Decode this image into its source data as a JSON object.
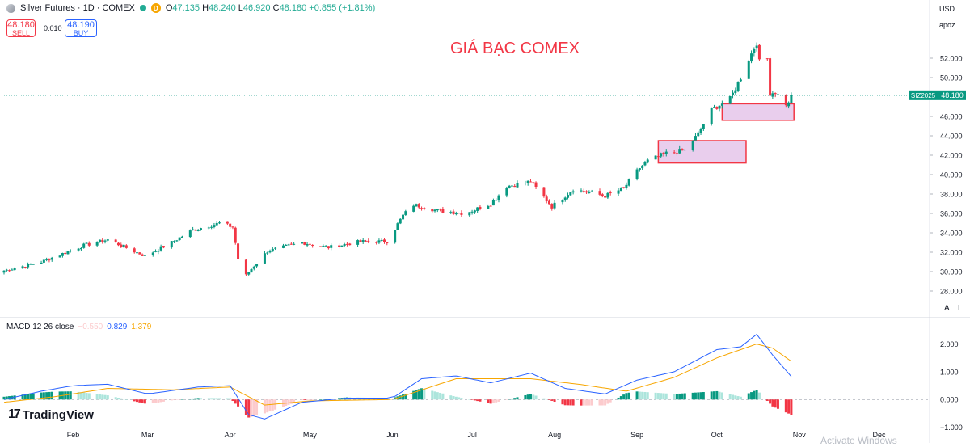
{
  "header": {
    "title": "Silver Futures · 1D · COMEX",
    "badge": "D",
    "open_label": "O",
    "open": "47.135",
    "high_label": "H",
    "high": "48.240",
    "low_label": "L",
    "low": "46.920",
    "close_label": "C",
    "close": "48.180",
    "change": "+0.855 (+1.81%)"
  },
  "trade": {
    "sell_price": "48.180",
    "sell_label": "SELL",
    "spread": "0.010",
    "buy_price": "48.190",
    "buy_label": "BUY"
  },
  "right_panel": {
    "currency": "USD",
    "scale_label": "apoz"
  },
  "watermark": "TradingView",
  "macd_label": {
    "name": "MACD 12 26 close",
    "hist": "−0.550",
    "macd": "0.829",
    "signal": "1.379"
  },
  "scale_buttons": [
    "A",
    "L"
  ],
  "os_overlay": "Activate Windows",
  "colors": {
    "up": "#089981",
    "down": "#f23645",
    "macd": "#2962ff",
    "signal": "#f7a600",
    "hist_up_strong": "#089981",
    "hist_up_weak": "#ace5dc",
    "hist_down_strong": "#f23645",
    "hist_down_weak": "#fccbcd",
    "zone_fill": "#e1bee7",
    "zone_border": "#f23645",
    "title_color": "#f23645",
    "last_price_tag": "#089981"
  },
  "chart_data": [
    {
      "type": "candlestick",
      "title": "GIÁ BẠC COMEX",
      "symbol_tag": "SIZ2025",
      "last_price": 48.18,
      "y_ticks": [
        "52.000",
        "50.000",
        "48.000",
        "46.000",
        "44.000",
        "42.000",
        "40.000",
        "38.000",
        "36.000",
        "34.000",
        "32.000",
        "30.000",
        "28.000"
      ],
      "ylim": [
        27,
        55.5
      ],
      "x_ticks": [
        {
          "label": "Feb",
          "date": "2025-02-01"
        },
        {
          "label": "Mar",
          "date": "2025-03-01"
        },
        {
          "label": "Apr",
          "date": "2025-04-01"
        },
        {
          "label": "May",
          "date": "2025-05-01"
        },
        {
          "label": "Jun",
          "date": "2025-06-01"
        },
        {
          "label": "Jul",
          "date": "2025-07-01"
        },
        {
          "label": "Aug",
          "date": "2025-08-01"
        },
        {
          "label": "Sep",
          "date": "2025-09-01"
        },
        {
          "label": "Oct",
          "date": "2025-10-01"
        },
        {
          "label": "Nov",
          "date": "2025-11-01"
        },
        {
          "label": "Dec",
          "date": "2025-12-01"
        }
      ],
      "x_range": [
        "2025-01-06",
        "2025-12-20"
      ],
      "key_points": [
        {
          "date": "2025-01-06",
          "close": 30.1
        },
        {
          "date": "2025-01-20",
          "close": 31.0
        },
        {
          "date": "2025-02-05",
          "close": 32.7
        },
        {
          "date": "2025-02-14",
          "close": 33.3
        },
        {
          "date": "2025-02-28",
          "close": 31.6
        },
        {
          "date": "2025-03-10",
          "close": 33.0
        },
        {
          "date": "2025-03-18",
          "close": 34.3
        },
        {
          "date": "2025-03-28",
          "close": 35.0
        },
        {
          "date": "2025-04-02",
          "close": 34.6
        },
        {
          "date": "2025-04-04",
          "close": 31.3
        },
        {
          "date": "2025-04-07",
          "close": 29.6
        },
        {
          "date": "2025-04-10",
          "close": 30.6
        },
        {
          "date": "2025-04-15",
          "close": 32.1
        },
        {
          "date": "2025-04-28",
          "close": 33.0
        },
        {
          "date": "2025-05-08",
          "close": 32.5
        },
        {
          "date": "2025-05-20",
          "close": 33.1
        },
        {
          "date": "2025-05-30",
          "close": 33.1
        },
        {
          "date": "2025-06-05",
          "close": 35.8
        },
        {
          "date": "2025-06-09",
          "close": 36.9
        },
        {
          "date": "2025-06-18",
          "close": 36.3
        },
        {
          "date": "2025-06-28",
          "close": 36.0
        },
        {
          "date": "2025-07-08",
          "close": 37.0
        },
        {
          "date": "2025-07-14",
          "close": 38.8
        },
        {
          "date": "2025-07-23",
          "close": 39.3
        },
        {
          "date": "2025-07-31",
          "close": 36.7
        },
        {
          "date": "2025-08-08",
          "close": 38.5
        },
        {
          "date": "2025-08-20",
          "close": 37.8
        },
        {
          "date": "2025-08-27",
          "close": 38.6
        },
        {
          "date": "2025-09-02",
          "close": 40.7
        },
        {
          "date": "2025-09-05",
          "close": 41.4
        },
        {
          "date": "2025-09-12",
          "close": 42.2
        },
        {
          "date": "2025-09-19",
          "close": 42.5
        },
        {
          "date": "2025-09-24",
          "close": 44.2
        },
        {
          "date": "2025-09-29",
          "close": 46.7
        },
        {
          "date": "2025-10-06",
          "close": 47.8
        },
        {
          "date": "2025-10-10",
          "close": 50.0
        },
        {
          "date": "2025-10-13",
          "close": 51.9
        },
        {
          "date": "2025-10-16",
          "close": 53.6
        },
        {
          "date": "2025-10-17",
          "close": 51.6
        },
        {
          "date": "2025-10-20",
          "close": 51.9
        },
        {
          "date": "2025-10-21",
          "close": 48.4
        },
        {
          "date": "2025-10-23",
          "close": 48.5
        },
        {
          "date": "2025-10-27",
          "close": 47.3
        },
        {
          "date": "2025-10-28",
          "close": 47.3
        },
        {
          "date": "2025-10-29",
          "close": 48.18
        }
      ],
      "annotations": [
        {
          "type": "rectangle",
          "start": "2025-09-09",
          "end": "2025-10-12",
          "low": 41.2,
          "high": 43.5
        },
        {
          "type": "rectangle",
          "start": "2025-10-03",
          "end": "2025-10-30",
          "low": 45.6,
          "high": 47.3
        }
      ]
    },
    {
      "type": "line+bar",
      "title": "MACD 12 26 close",
      "y_ticks": [
        "2.000",
        "1.000",
        "0.000",
        "−1.000"
      ],
      "ylim": [
        -1.1,
        2.6
      ],
      "macd_points": [
        {
          "date": "2025-01-06",
          "v": 0.0
        },
        {
          "date": "2025-01-20",
          "v": 0.3
        },
        {
          "date": "2025-02-01",
          "v": 0.5
        },
        {
          "date": "2025-02-14",
          "v": 0.55
        },
        {
          "date": "2025-03-01",
          "v": 0.2
        },
        {
          "date": "2025-03-20",
          "v": 0.45
        },
        {
          "date": "2025-04-01",
          "v": 0.5
        },
        {
          "date": "2025-04-08",
          "v": -0.55
        },
        {
          "date": "2025-04-14",
          "v": -0.7
        },
        {
          "date": "2025-04-28",
          "v": -0.1
        },
        {
          "date": "2025-05-15",
          "v": 0.05
        },
        {
          "date": "2025-06-01",
          "v": 0.05
        },
        {
          "date": "2025-06-12",
          "v": 0.75
        },
        {
          "date": "2025-06-25",
          "v": 0.85
        },
        {
          "date": "2025-07-08",
          "v": 0.6
        },
        {
          "date": "2025-07-23",
          "v": 0.95
        },
        {
          "date": "2025-08-05",
          "v": 0.4
        },
        {
          "date": "2025-08-20",
          "v": 0.2
        },
        {
          "date": "2025-09-01",
          "v": 0.7
        },
        {
          "date": "2025-09-15",
          "v": 1.0
        },
        {
          "date": "2025-10-01",
          "v": 1.8
        },
        {
          "date": "2025-10-10",
          "v": 1.9
        },
        {
          "date": "2025-10-16",
          "v": 2.35
        },
        {
          "date": "2025-10-22",
          "v": 1.6
        },
        {
          "date": "2025-10-29",
          "v": 0.829
        }
      ],
      "signal_points": [
        {
          "date": "2025-01-06",
          "v": -0.1
        },
        {
          "date": "2025-01-25",
          "v": 0.1
        },
        {
          "date": "2025-02-14",
          "v": 0.4
        },
        {
          "date": "2025-03-10",
          "v": 0.35
        },
        {
          "date": "2025-04-01",
          "v": 0.45
        },
        {
          "date": "2025-04-14",
          "v": -0.2
        },
        {
          "date": "2025-05-01",
          "v": -0.05
        },
        {
          "date": "2025-06-01",
          "v": 0.0
        },
        {
          "date": "2025-06-25",
          "v": 0.75
        },
        {
          "date": "2025-07-23",
          "v": 0.75
        },
        {
          "date": "2025-08-10",
          "v": 0.55
        },
        {
          "date": "2025-08-28",
          "v": 0.3
        },
        {
          "date": "2025-09-15",
          "v": 0.8
        },
        {
          "date": "2025-10-01",
          "v": 1.5
        },
        {
          "date": "2025-10-16",
          "v": 2.0
        },
        {
          "date": "2025-10-22",
          "v": 1.85
        },
        {
          "date": "2025-10-29",
          "v": 1.379
        }
      ],
      "hist_last": -0.55
    }
  ]
}
